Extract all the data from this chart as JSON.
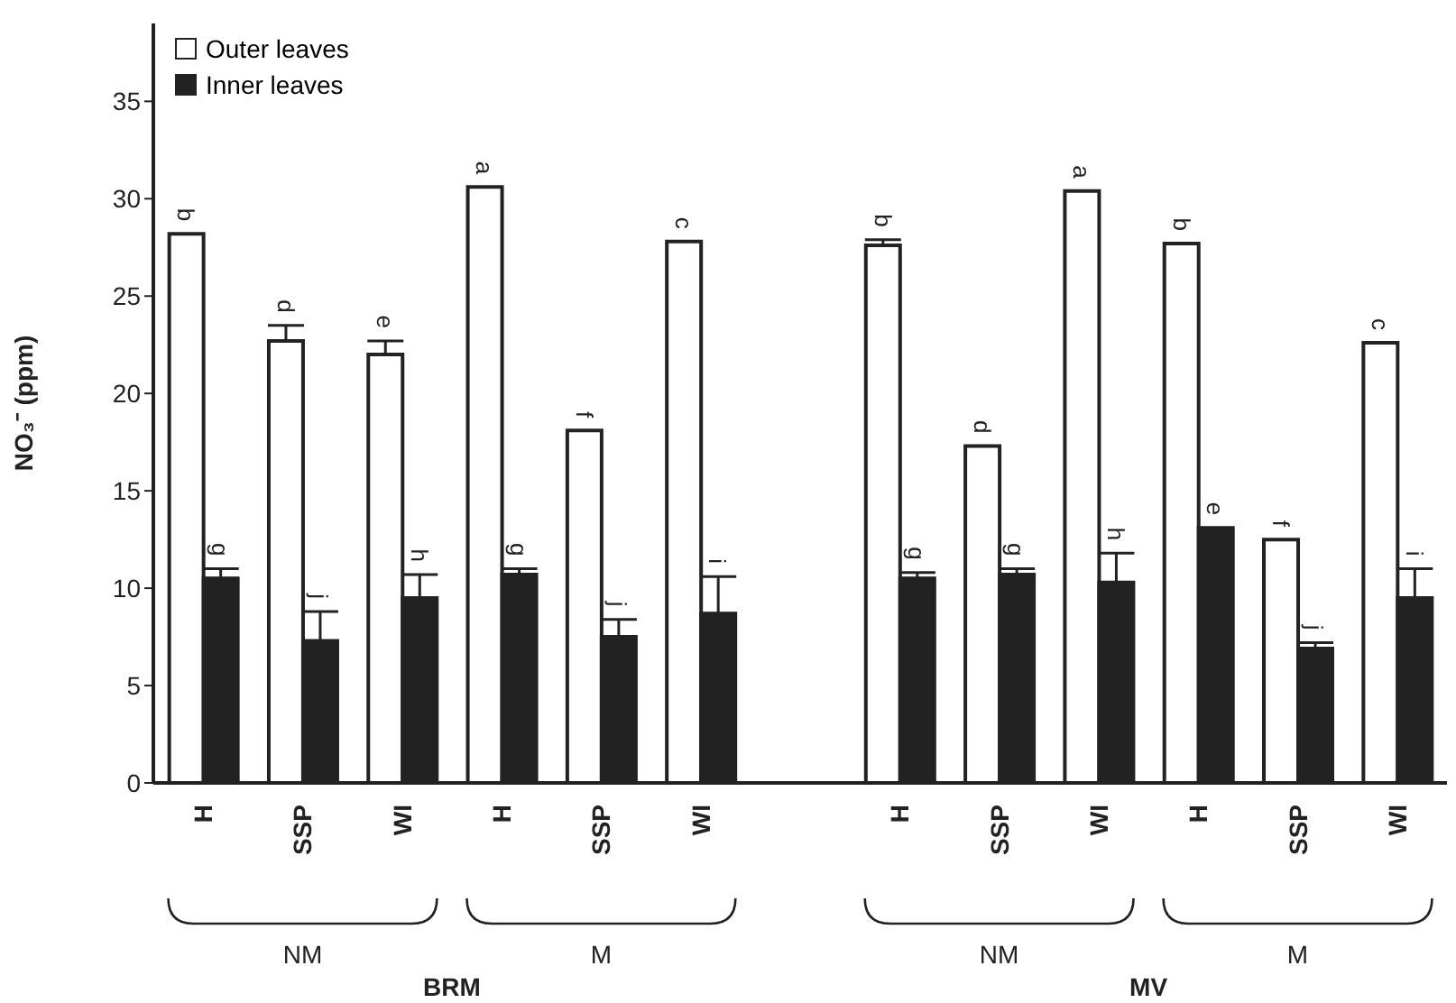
{
  "chart_data": {
    "type": "bar",
    "ylabel": "NO₃⁻ (ppm)",
    "categories": [
      "H",
      "SSP",
      "WI",
      "H",
      "SSP",
      "WI",
      null,
      "H",
      "SSP",
      "WI",
      "H",
      "SSP",
      "WI"
    ],
    "series": [
      {
        "name": "Outer leaves",
        "color": "#ffffff",
        "values": [
          28.2,
          22.7,
          22.0,
          30.6,
          18.1,
          27.8,
          null,
          27.6,
          17.3,
          30.4,
          27.7,
          12.5,
          22.6
        ],
        "errors": [
          null,
          [
            22.7,
            23.5
          ],
          [
            22.0,
            22.7
          ],
          null,
          null,
          null,
          null,
          [
            27.6,
            27.9
          ],
          null,
          null,
          null,
          null,
          null
        ],
        "value_labels": [
          "b",
          "d",
          "e",
          "a",
          "f",
          "c",
          null,
          "b",
          "d",
          "a",
          "b",
          "f",
          "c"
        ]
      },
      {
        "name": "Inner leaves",
        "color": "#222222",
        "values": [
          10.5,
          7.3,
          9.5,
          10.7,
          7.5,
          8.7,
          null,
          10.5,
          10.7,
          10.3,
          13.1,
          6.9,
          9.5
        ],
        "errors": [
          [
            10.5,
            11.0
          ],
          [
            7.3,
            8.8
          ],
          [
            9.5,
            10.7
          ],
          [
            10.7,
            11.0
          ],
          [
            7.5,
            8.4
          ],
          [
            8.7,
            10.6
          ],
          null,
          [
            10.5,
            10.8
          ],
          [
            10.7,
            11.0
          ],
          [
            10.3,
            11.8
          ],
          null,
          [
            6.9,
            7.2
          ],
          [
            9.5,
            11.0
          ]
        ],
        "value_labels": [
          "g",
          "j",
          "h",
          "g",
          "j",
          "i",
          null,
          "g",
          "g",
          "h",
          "e",
          "j",
          "i"
        ]
      }
    ],
    "ylim": [
      0,
      39
    ],
    "yticks": [
      0,
      5,
      10,
      15,
      20,
      25,
      30,
      35
    ],
    "annotations": [
      "NM",
      "M",
      "NM",
      "M",
      "BRM",
      "MV"
    ],
    "legend": "top left",
    "grid": false
  }
}
